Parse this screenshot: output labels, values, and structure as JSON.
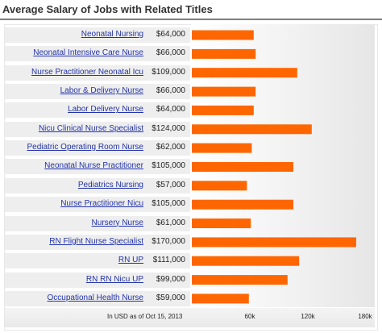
{
  "chart_data": {
    "type": "bar",
    "orientation": "horizontal",
    "title": "Average Salary of Jobs with Related Titles",
    "categories": [
      "Neonatal Nursing",
      "Neonatal Intensive Care Nurse",
      "Nurse Practitioner Neonatal Icu",
      "Labor & Delivery Nurse",
      "Labor Delivery Nurse",
      "Nicu Clinical Nurse Specialist",
      "Pediatric Operating Room Nurse",
      "Neonatal Nurse Practitioner",
      "Pediatrics Nursing",
      "Nurse Practitioner Nicu",
      "Nursery Nurse",
      "RN Flight Nurse Specialist",
      "RN UP",
      "RN RN Nicu UP",
      "Occupational Health Nurse"
    ],
    "values": [
      64000,
      66000,
      109000,
      66000,
      64000,
      124000,
      62000,
      105000,
      57000,
      105000,
      61000,
      170000,
      111000,
      99000,
      59000
    ],
    "value_labels": [
      "$64,000",
      "$66,000",
      "$109,000",
      "$66,000",
      "$64,000",
      "$124,000",
      "$62,000",
      "$105,000",
      "$57,000",
      "$105,000",
      "$61,000",
      "$170,000",
      "$111,000",
      "$99,000",
      "$59,000"
    ],
    "xlim": [
      0,
      180000
    ],
    "x_ticks": [
      60000,
      120000,
      180000
    ],
    "x_tick_labels": [
      "60k",
      "120k",
      "180k"
    ],
    "footnote": "In USD as of Oct 15, 2013",
    "grid": false,
    "bar_color": "#ff6600"
  }
}
